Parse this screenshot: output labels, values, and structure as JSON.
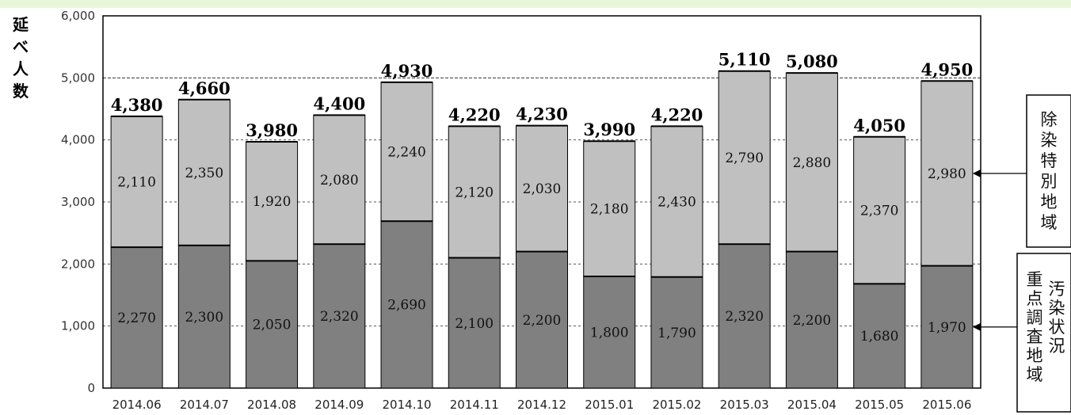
{
  "chart_data": {
    "type": "bar",
    "stacked": true,
    "ylabel": "延べ人数",
    "ylim": [
      0,
      6000
    ],
    "yticks": [
      "0",
      "1,000",
      "2,000",
      "3,000",
      "4,000",
      "5,000",
      "6,000"
    ],
    "categories": [
      "2014.06",
      "2014.07",
      "2014.08",
      "2014.09",
      "2014.10",
      "2014.11",
      "2014.12",
      "2015.01",
      "2015.02",
      "2015.03",
      "2015.04",
      "2015.05",
      "2015.06"
    ],
    "series": [
      {
        "name": "汚染状況重点調査地域",
        "values": [
          2270,
          2300,
          2050,
          2320,
          2690,
          2100,
          2200,
          1800,
          1790,
          2320,
          2200,
          1680,
          1970
        ],
        "labels": [
          "2,270",
          "2,300",
          "2,050",
          "2,320",
          "2,690",
          "2,100",
          "2,200",
          "1,800",
          "1,790",
          "2,320",
          "2,200",
          "1,680",
          "1,970"
        ],
        "color": "#808080"
      },
      {
        "name": "除染特別地域",
        "values": [
          2110,
          2350,
          1920,
          2080,
          2240,
          2120,
          2030,
          2180,
          2430,
          2790,
          2880,
          2370,
          2980
        ],
        "labels": [
          "2,110",
          "2,350",
          "1,920",
          "2,080",
          "2,240",
          "2,120",
          "2,030",
          "2,180",
          "2,430",
          "2,790",
          "2,880",
          "2,370",
          "2,980"
        ],
        "color": "#c0c0c0"
      }
    ],
    "totals": [
      4380,
      4660,
      3980,
      4400,
      4930,
      4220,
      4230,
      3990,
      4220,
      5110,
      5080,
      4050,
      4950
    ],
    "total_labels": [
      "4,380",
      "4,660",
      "3,980",
      "4,400",
      "4,930",
      "4,220",
      "4,230",
      "3,990",
      "4,220",
      "5,110",
      "5,080",
      "4,050",
      "4,950"
    ],
    "reference_line": 5000,
    "gridlines": true,
    "legend": "right",
    "legend_entries": [
      {
        "text": "除染特別地域",
        "columns": [
          "除染特別地域"
        ]
      },
      {
        "text": "汚染状況重点調査地域",
        "columns": [
          "汚染状況",
          "重点調査地域"
        ]
      }
    ]
  }
}
